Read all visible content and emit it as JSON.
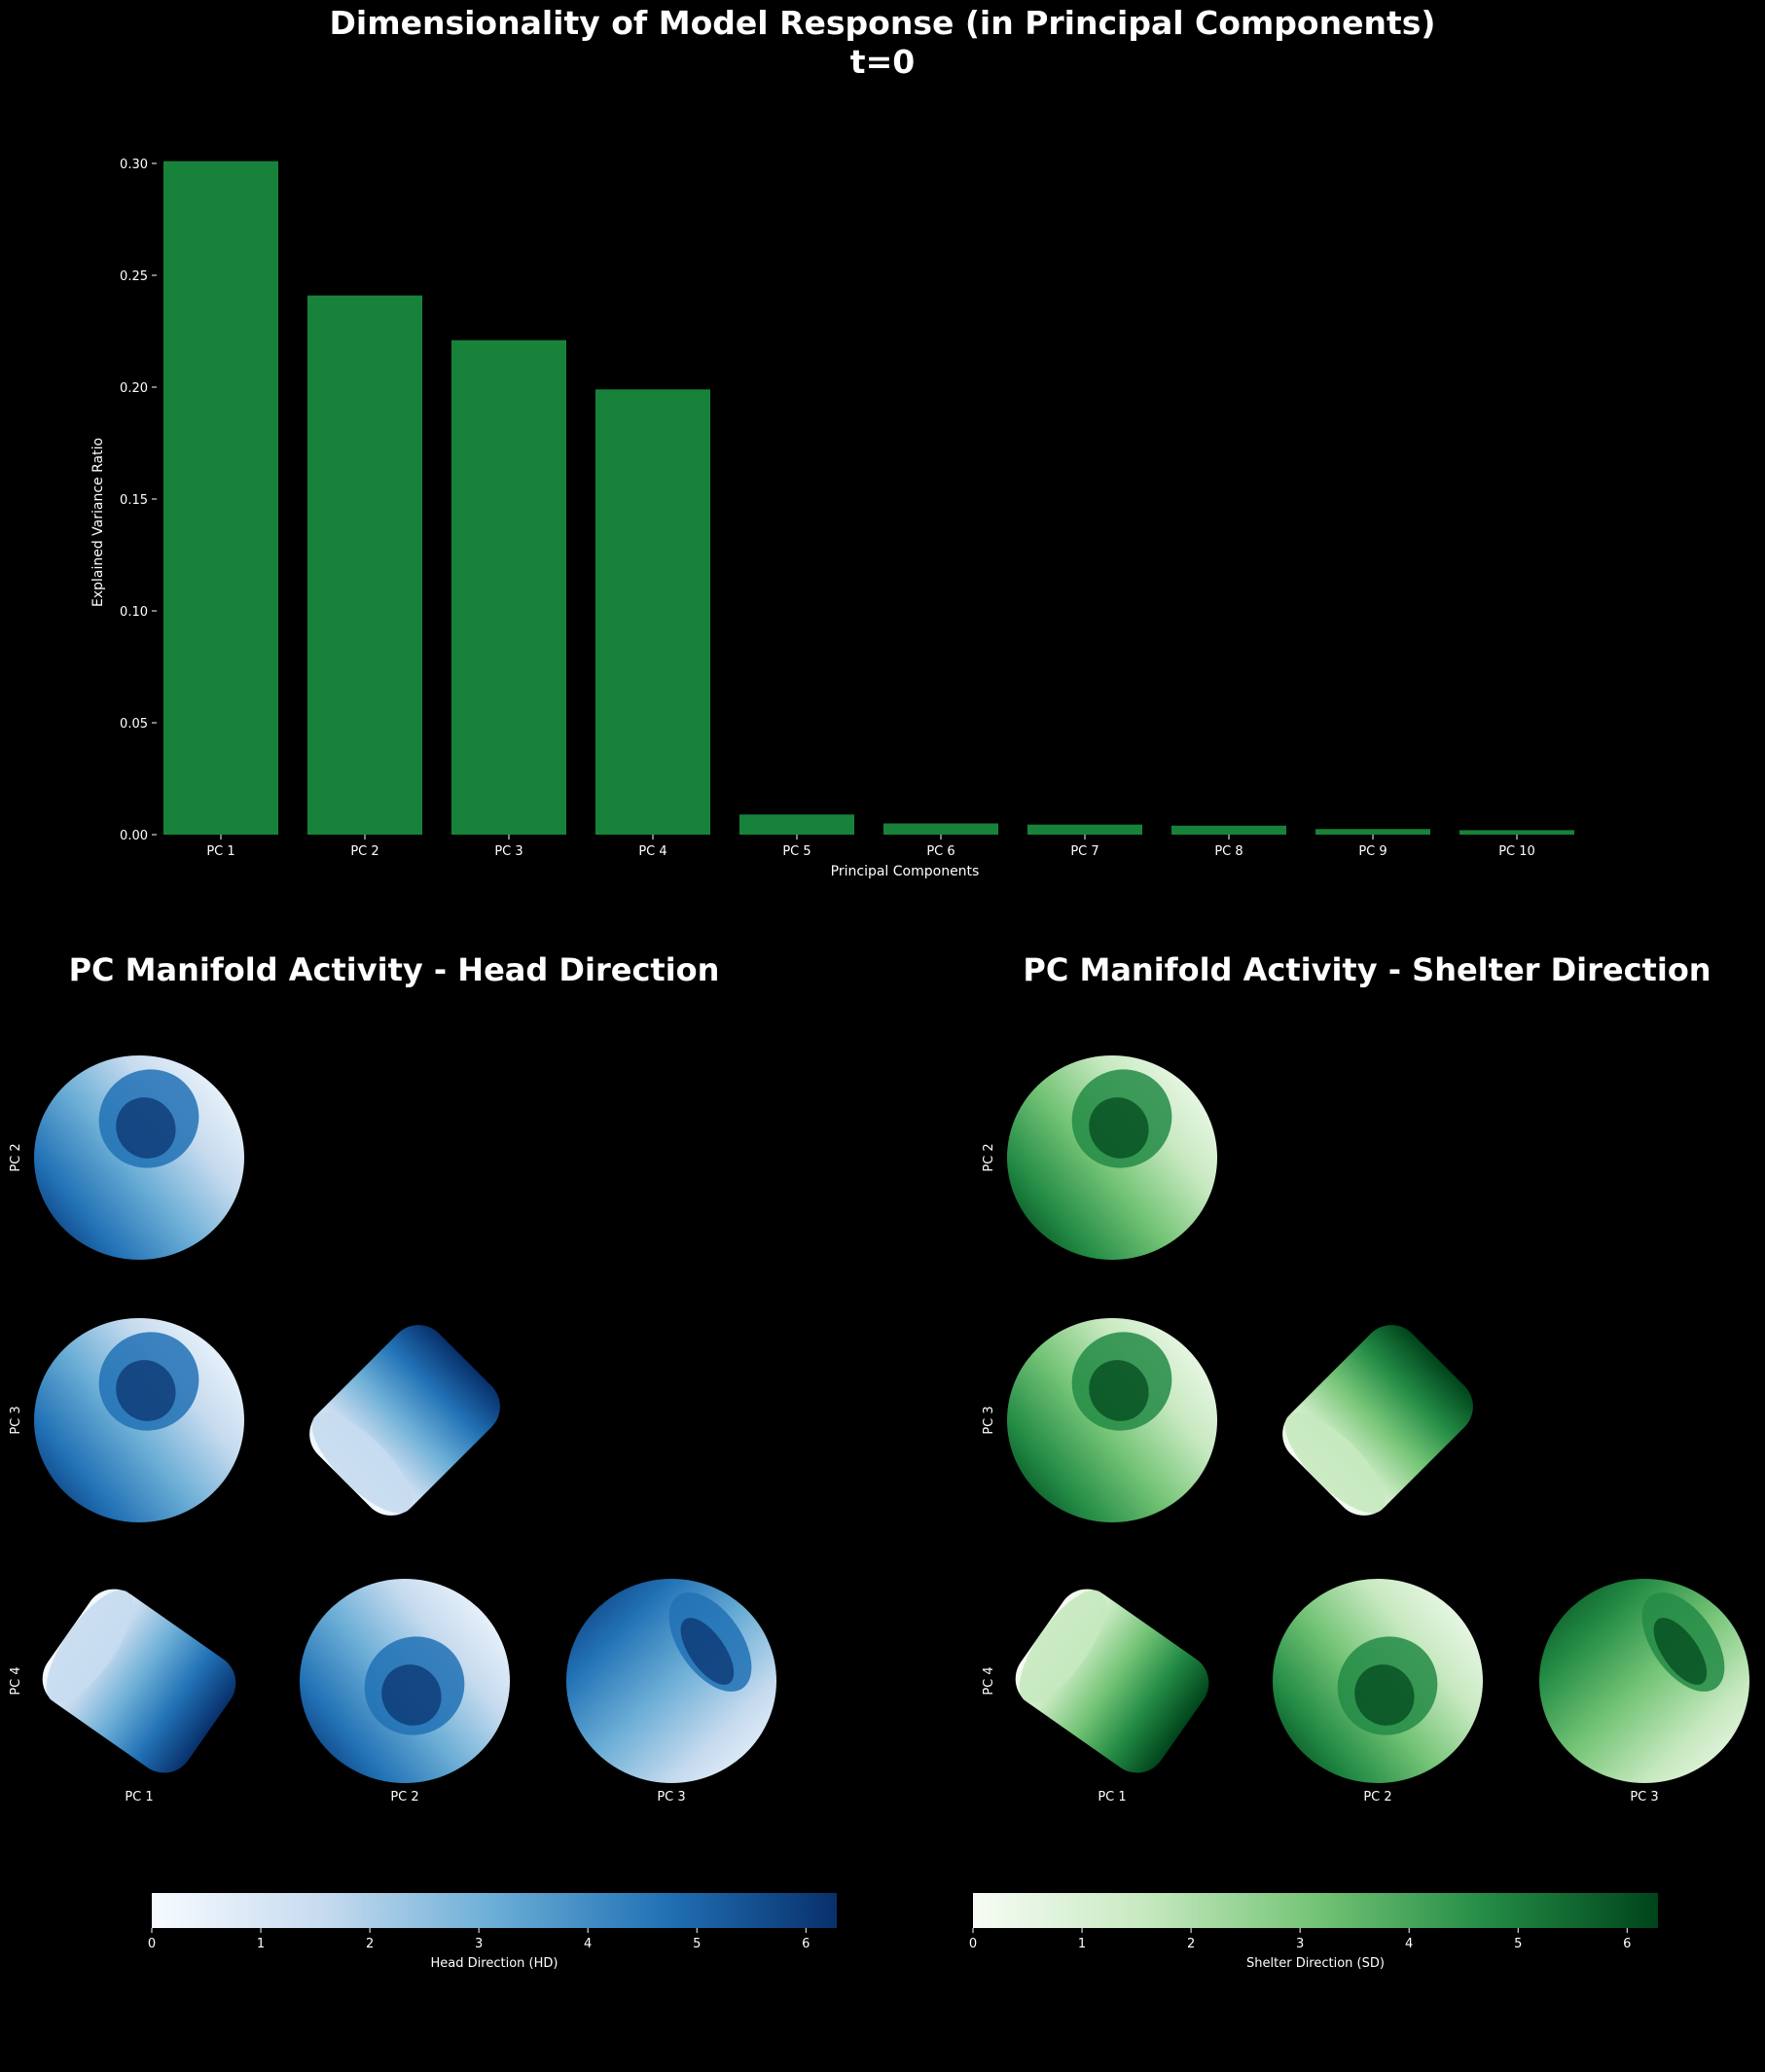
{
  "figure": {
    "title_line1": "Dimensionality of Model Response (in Principal Components)",
    "title_line2": "t=0"
  },
  "chart_data": [
    {
      "type": "bar",
      "title": "",
      "categories": [
        "PC 1",
        "PC 2",
        "PC 3",
        "PC 4",
        "PC 5",
        "PC 6",
        "PC 7",
        "PC 8",
        "PC 9",
        "PC 10"
      ],
      "values": [
        0.301,
        0.241,
        0.221,
        0.199,
        0.009,
        0.005,
        0.0045,
        0.004,
        0.0025,
        0.002
      ],
      "xlabel": "Principal Components",
      "ylabel": "Explained Variance Ratio",
      "ylim": [
        0,
        0.31
      ],
      "yticks": [
        "0.00",
        "0.05",
        "0.10",
        "0.15",
        "0.20",
        "0.25",
        "0.30"
      ],
      "bar_color": "#18823b",
      "grid": false
    },
    {
      "type": "scatter",
      "title": "PC Manifold Activity - Head Direction",
      "x_axis_labels": [
        "PC 1",
        "PC 2",
        "PC 3"
      ],
      "y_axis_labels": [
        "PC 2",
        "PC 3",
        "PC 4"
      ],
      "colorbar_label": "Head Direction (HD)",
      "colorbar_ticks": [
        "0",
        "1",
        "2",
        "3",
        "4",
        "5",
        "6"
      ],
      "colorbar_range": [
        0,
        6.283
      ],
      "colormap": "Blues",
      "colormap_colors": [
        "#f7fbff",
        "#c6dbef",
        "#6baed6",
        "#2171b5",
        "#08306b"
      ]
    },
    {
      "type": "scatter",
      "title": "PC Manifold Activity - Shelter Direction",
      "x_axis_labels": [
        "PC 1",
        "PC 2",
        "PC 3"
      ],
      "y_axis_labels": [
        "PC 2",
        "PC 3",
        "PC 4"
      ],
      "colorbar_label": "Shelter Direction (SD)",
      "colorbar_ticks": [
        "0",
        "1",
        "2",
        "3",
        "4",
        "5",
        "6"
      ],
      "colorbar_range": [
        0,
        6.283
      ],
      "colormap": "Greens",
      "colormap_colors": [
        "#f7fcf5",
        "#c7e9c0",
        "#74c476",
        "#238b45",
        "#00441b"
      ]
    }
  ]
}
